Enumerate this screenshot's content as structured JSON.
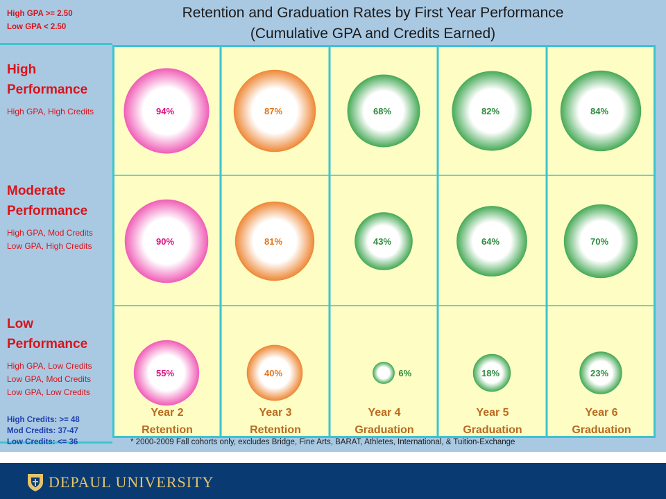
{
  "legend_gpa": [
    "High GPA >= 2.50",
    "Low GPA < 2.50"
  ],
  "title_line1": "Retention and Graduation Rates by First Year Performance",
  "title_line2": "(Cumulative GPA and Credits Earned)",
  "rows": [
    {
      "name_line1": "High",
      "name_line2": "Performance",
      "sub": [
        "High GPA, High Credits"
      ]
    },
    {
      "name_line1": "Moderate",
      "name_line2": "Performance",
      "sub": [
        "High GPA, Mod Credits",
        "Low GPA, High Credits"
      ]
    },
    {
      "name_line1": "Low",
      "name_line2": "Performance",
      "sub": [
        "High GPA, Low Credits",
        "Low GPA, Mod Credits",
        "Low GPA, Low Credits"
      ]
    }
  ],
  "legend_credits": [
    "High Credits: >= 48",
    "Mod Credits: 37-47",
    "Low Credits: <= 36"
  ],
  "footnote": "*  2000-2009 Fall cohorts only, excludes Bridge, Fine Arts, BARAT, Athletes, International, & Tuition-Exchange",
  "university_name": "DEPAUL UNIVERSITY",
  "colors": {
    "retention_y2": "#f060b8",
    "retention_y3": "#ee8a3a",
    "graduation": "#4aab5a",
    "grid_line": "#3cc4cf",
    "cell_bg": "#fdfdc4",
    "label_red": "#d8141b",
    "label_blue": "#1f3fb0",
    "footer_bg": "#0a3a72"
  },
  "chart_data": {
    "type": "bubble",
    "title": "Retention and Graduation Rates by First Year Performance",
    "subtitle": "(Cumulative GPA and Credits Earned)",
    "categories": [
      {
        "line1": "Year 2",
        "line2": "Retention"
      },
      {
        "line1": "Year 3",
        "line2": "Retention"
      },
      {
        "line1": "Year 4",
        "line2": "Graduation"
      },
      {
        "line1": "Year 5",
        "line2": "Graduation"
      },
      {
        "line1": "Year 6",
        "line2": "Graduation"
      }
    ],
    "series": [
      {
        "values": [
          94,
          87,
          68,
          82,
          84
        ]
      },
      {
        "values": [
          90,
          81,
          43,
          64,
          70
        ]
      },
      {
        "values": [
          55,
          40,
          6,
          18,
          23
        ]
      }
    ],
    "value_suffix": "%",
    "grid": true
  }
}
